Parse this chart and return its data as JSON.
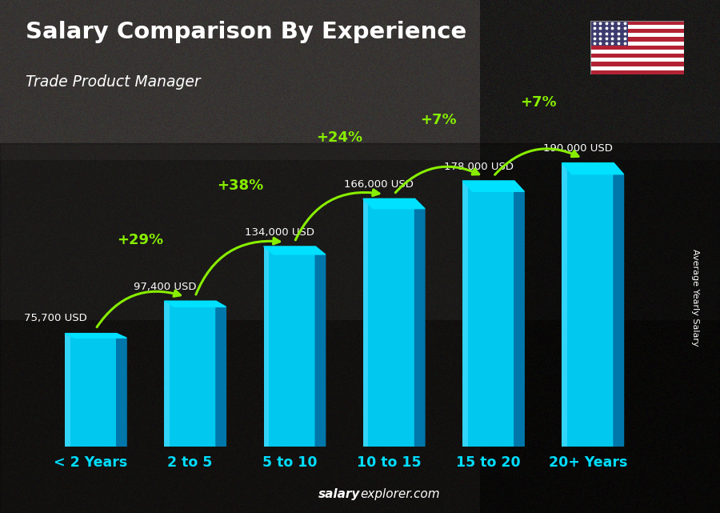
{
  "title": "Salary Comparison By Experience",
  "subtitle": "Trade Product Manager",
  "categories": [
    "< 2 Years",
    "2 to 5",
    "5 to 10",
    "10 to 15",
    "15 to 20",
    "20+ Years"
  ],
  "values": [
    75700,
    97400,
    134000,
    166000,
    178000,
    190000
  ],
  "value_labels": [
    "75,700 USD",
    "97,400 USD",
    "134,000 USD",
    "166,000 USD",
    "178,000 USD",
    "190,000 USD"
  ],
  "pct_changes": [
    "+29%",
    "+38%",
    "+24%",
    "+7%",
    "+7%"
  ],
  "bar_front_color": "#00c8ee",
  "bar_side_color": "#0077aa",
  "bar_top_color": "#00e0ff",
  "bar_highlight_color": "#55ddff",
  "pct_color": "#88ee00",
  "value_label_color": "#ffffff",
  "title_color": "#ffffff",
  "subtitle_color": "#ffffff",
  "xtick_color": "#00ddff",
  "ylabel_text": "Average Yearly Salary",
  "footer_salary": "salary",
  "footer_rest": "explorer.com",
  "footer_color": "#ffffff",
  "bg_color": "#222222",
  "figsize": [
    9.0,
    6.41
  ],
  "dpi": 100
}
